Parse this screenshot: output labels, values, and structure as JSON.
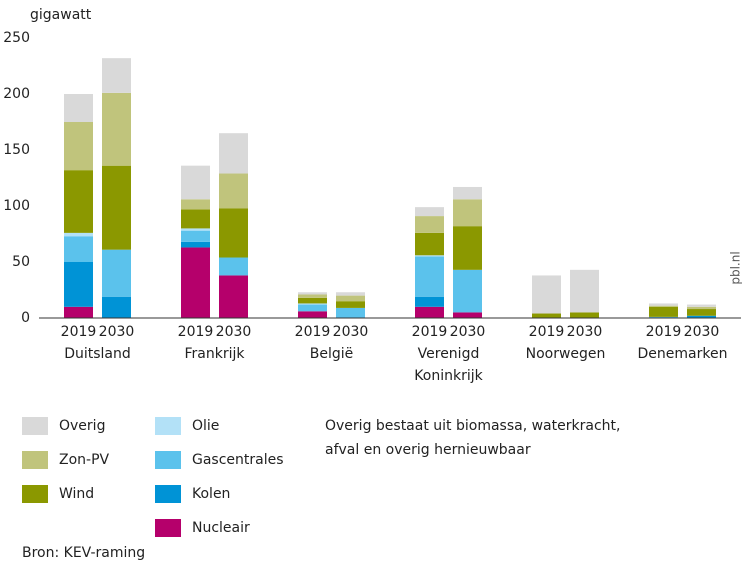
{
  "chart_data": {
    "type": "stacked-bar",
    "y_label": "gigawatt",
    "years": [
      "2019",
      "2030"
    ],
    "groups": [
      [
        "Duitsland"
      ],
      [
        "Frankrijk"
      ],
      [
        "België"
      ],
      [
        "Verenigd",
        "Koninkrijk"
      ],
      [
        "Noorwegen"
      ],
      [
        "Denemarken"
      ]
    ],
    "series": [
      {
        "name": "Nucleair",
        "color": "#b5006b",
        "values": [
          10,
          0,
          63,
          38,
          6,
          0,
          10,
          5,
          0,
          0,
          0,
          0
        ]
      },
      {
        "name": "Kolen",
        "color": "#0093d6",
        "values": [
          40,
          19,
          5,
          0,
          0,
          0,
          9,
          0,
          0,
          0,
          0,
          2
        ]
      },
      {
        "name": "Gascentrales",
        "color": "#5bc2ec",
        "values": [
          23,
          42,
          10,
          16,
          6,
          9,
          36,
          38,
          0,
          0,
          1,
          0
        ]
      },
      {
        "name": "Olie",
        "color": "#b3e1f7",
        "values": [
          3,
          0,
          2,
          0,
          1,
          0,
          1,
          0,
          0,
          0,
          0,
          0
        ]
      },
      {
        "name": "Wind",
        "color": "#8b9800",
        "values": [
          56,
          75,
          17,
          44,
          5,
          6,
          20,
          39,
          4,
          5,
          9,
          6
        ]
      },
      {
        "name": "Zon-PV",
        "color": "#c0c47c",
        "values": [
          43,
          65,
          9,
          31,
          3,
          5,
          15,
          24,
          0,
          0,
          1,
          2
        ]
      },
      {
        "name": "Overig",
        "color": "#d9d9d9",
        "values": [
          25,
          31,
          30,
          36,
          2,
          3,
          8,
          11,
          34,
          38,
          2,
          2
        ]
      }
    ],
    "ylim": [
      0,
      250
    ],
    "yticks": [
      0,
      50,
      100,
      150,
      200,
      250
    ],
    "note": [
      "Overig bestaat uit biomassa, waterkracht,",
      "afval en overig hernieuwbaar"
    ],
    "source": "Bron: KEV-raming",
    "watermark": "pbl.nl"
  }
}
